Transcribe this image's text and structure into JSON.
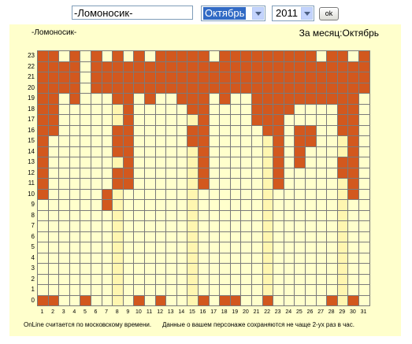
{
  "form": {
    "name_value": "-Ломоносик-",
    "month_value": "Октябрь",
    "year_value": "2011",
    "ok_label": "ok"
  },
  "header": {
    "character": "-Ломоносик-",
    "period": "За месяц:Октябрь"
  },
  "footer": {
    "timezone_note": "OnLine считается по московскому времени.",
    "update_note": "Данные о вашем персонаже сохраняются не чаще 2-ух раз в час."
  },
  "colors": {
    "online": "#d2581e",
    "offline": "#ffffcc",
    "highlight": "#fff6b0"
  },
  "chart_data": {
    "type": "heatmap",
    "x": [
      1,
      2,
      3,
      4,
      5,
      6,
      7,
      8,
      9,
      10,
      11,
      12,
      13,
      14,
      15,
      16,
      17,
      18,
      19,
      20,
      21,
      22,
      23,
      24,
      25,
      26,
      27,
      28,
      29,
      30,
      31
    ],
    "y": [
      23,
      22,
      21,
      20,
      19,
      18,
      17,
      16,
      15,
      14,
      13,
      12,
      11,
      10,
      9,
      8,
      7,
      6,
      5,
      4,
      3,
      2,
      1,
      0
    ],
    "online_days_by_hour": {
      "23": [
        1,
        2,
        4,
        6,
        8,
        10,
        12,
        13,
        14,
        15,
        16,
        18,
        19,
        20,
        21,
        22,
        23,
        24,
        25,
        26,
        28,
        29,
        31
      ],
      "22": [
        1,
        2,
        3,
        4,
        6,
        7,
        8,
        9,
        10,
        11,
        12,
        13,
        14,
        15,
        16,
        17,
        18,
        19,
        20,
        21,
        22,
        23,
        24,
        25,
        26,
        27,
        28,
        29,
        30,
        31
      ],
      "21": [
        1,
        2,
        3,
        4,
        6,
        7,
        8,
        9,
        10,
        11,
        12,
        13,
        14,
        15,
        16,
        17,
        18,
        19,
        20,
        21,
        22,
        23,
        24,
        25,
        26,
        27,
        28,
        29,
        30,
        31
      ],
      "20": [
        1,
        2,
        3,
        4,
        6,
        7,
        8,
        9,
        10,
        11,
        12,
        13,
        14,
        15,
        16,
        17,
        18,
        19,
        20,
        21,
        22,
        23,
        24,
        25,
        26,
        27,
        28,
        29,
        30,
        31
      ],
      "19": [
        1,
        2,
        4,
        8,
        9,
        11,
        14,
        15,
        16,
        18,
        21,
        22,
        23,
        24,
        25,
        26,
        27,
        28,
        29,
        30
      ],
      "18": [
        1,
        2,
        9,
        15,
        16,
        21,
        22,
        23,
        24,
        29,
        30
      ],
      "17": [
        1,
        2,
        9,
        16,
        21,
        22,
        23,
        29,
        30
      ],
      "16": [
        1,
        2,
        8,
        9,
        15,
        16,
        22,
        23,
        25,
        26,
        29,
        30
      ],
      "15": [
        1,
        8,
        9,
        15,
        16,
        23,
        25,
        26,
        30
      ],
      "14": [
        1,
        8,
        9,
        16,
        23,
        25,
        30
      ],
      "13": [
        1,
        9,
        16,
        23,
        25,
        29,
        30
      ],
      "12": [
        1,
        8,
        9,
        16,
        23,
        29,
        30
      ],
      "11": [
        1,
        8,
        9,
        16,
        23,
        30
      ],
      "10": [
        1,
        7,
        30
      ],
      "9": [
        7
      ],
      "8": [],
      "7": [],
      "6": [],
      "5": [],
      "4": [],
      "3": [],
      "2": [],
      "1": [],
      "0": [
        1,
        2,
        5,
        10,
        12,
        16,
        18,
        19,
        22,
        28,
        30
      ]
    },
    "highlighted_days": [
      8,
      15,
      22,
      29
    ]
  }
}
